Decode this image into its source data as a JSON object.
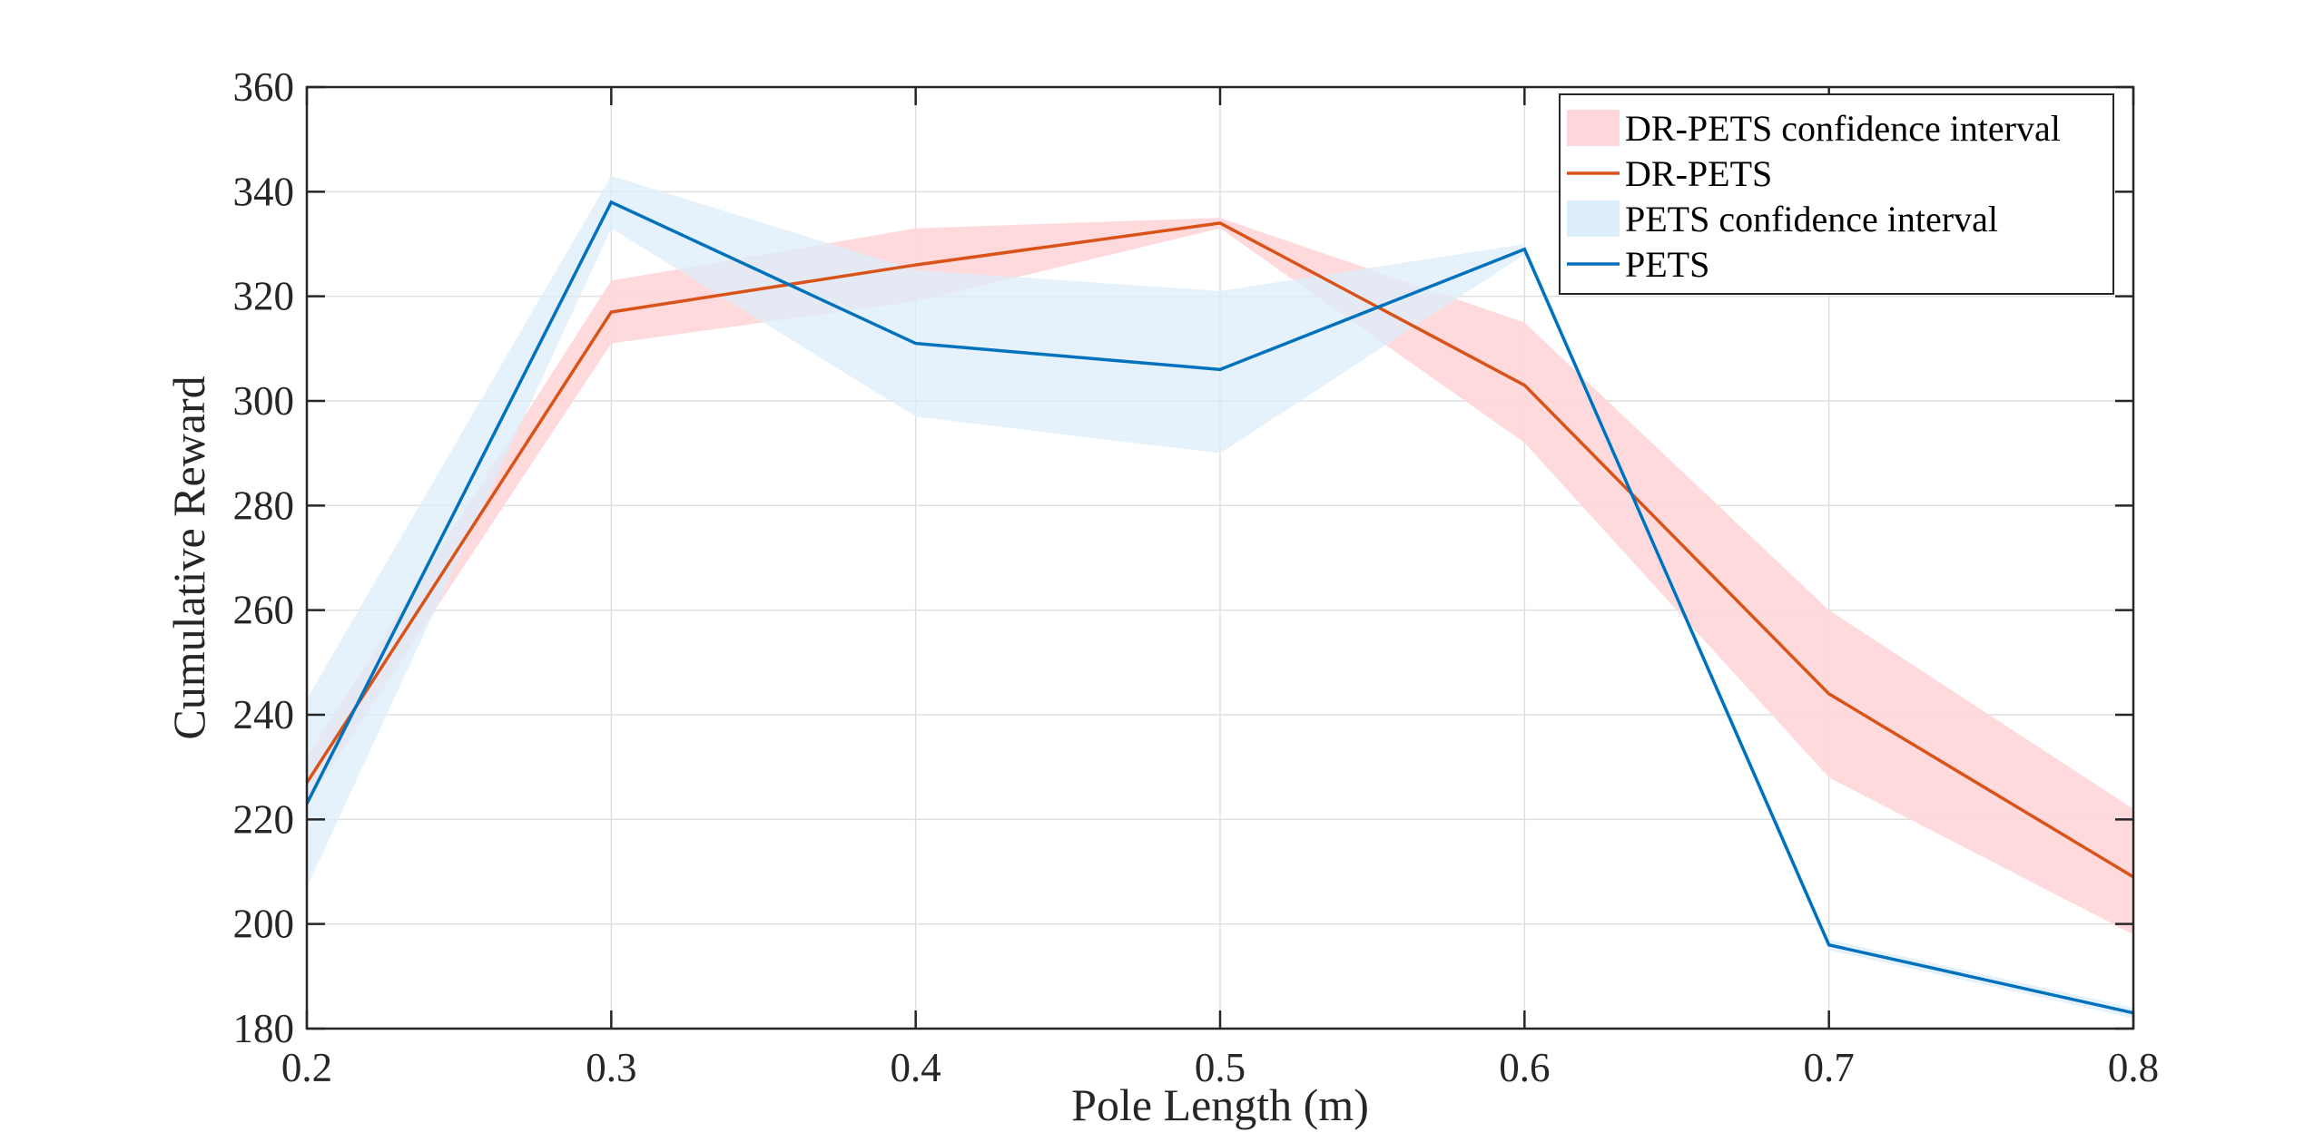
{
  "chart_data": {
    "type": "line",
    "title": "",
    "xlabel": "Pole Length (m)",
    "ylabel": "Cumulative Reward",
    "xlim": [
      0.2,
      0.8
    ],
    "ylim": [
      180,
      360
    ],
    "xticks": [
      0.2,
      0.3,
      0.4,
      0.5,
      0.6,
      0.7,
      0.8
    ],
    "xtick_labels": [
      "0.2",
      "0.3",
      "0.4",
      "0.5",
      "0.6",
      "0.7",
      "0.8"
    ],
    "yticks": [
      180,
      200,
      220,
      240,
      260,
      280,
      300,
      320,
      340,
      360
    ],
    "ytick_labels": [
      "180",
      "200",
      "220",
      "240",
      "260",
      "280",
      "300",
      "320",
      "340",
      "360"
    ],
    "grid": true,
    "legend_position": "top-right",
    "series": [
      {
        "name": "DR-PETS",
        "band_name": "DR-PETS confidence interval",
        "color": "#D95319",
        "band_color": "#FFD6D9",
        "x": [
          0.2,
          0.3,
          0.4,
          0.5,
          0.6,
          0.7,
          0.8
        ],
        "values": [
          227,
          317,
          326,
          334,
          303,
          244,
          209
        ],
        "lower": [
          223,
          311,
          319,
          333,
          292,
          228,
          198
        ],
        "upper": [
          232,
          323,
          333,
          335,
          315,
          260,
          222
        ]
      },
      {
        "name": "PETS",
        "band_name": "PETS confidence interval",
        "color": "#0072BD",
        "band_color": "#DCEEF9",
        "x": [
          0.2,
          0.3,
          0.4,
          0.5,
          0.6,
          0.7,
          0.8
        ],
        "values": [
          223,
          338,
          311,
          306,
          329,
          196,
          183
        ],
        "lower": [
          207,
          333,
          297,
          290,
          328,
          195,
          182
        ],
        "upper": [
          243,
          343,
          325,
          321,
          330,
          197,
          184
        ]
      }
    ]
  }
}
